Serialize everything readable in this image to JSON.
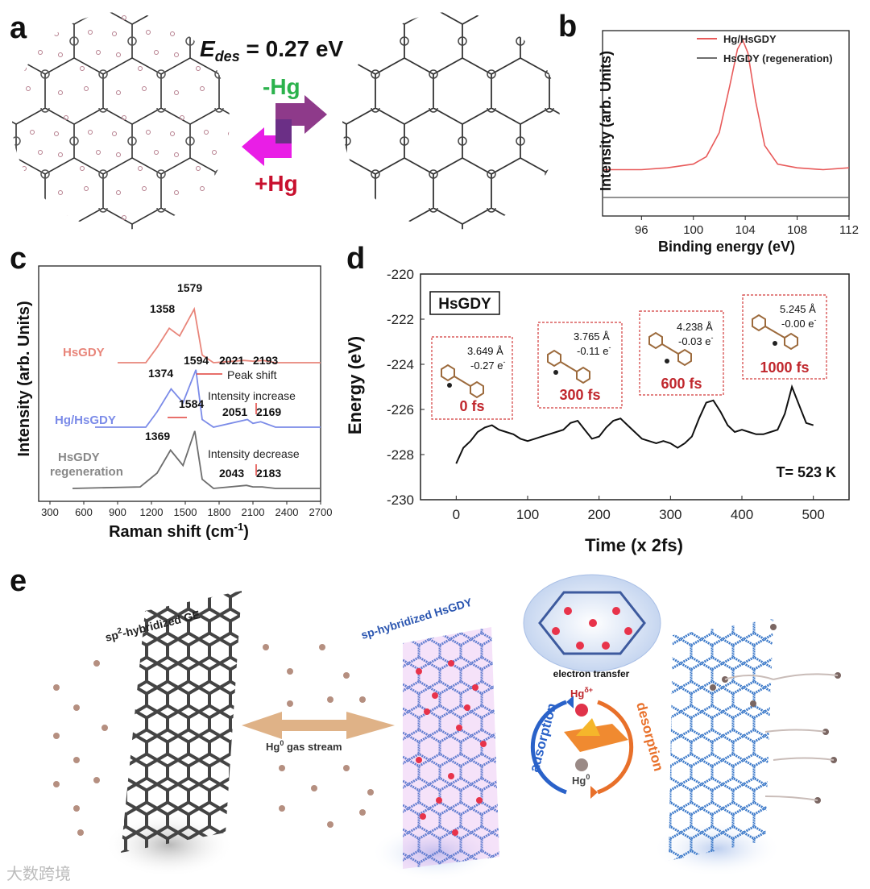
{
  "panels": {
    "a": "a",
    "b": "b",
    "c": "c",
    "d": "d",
    "e": "e"
  },
  "panel_a": {
    "energy_label": "E",
    "energy_subscript": "des",
    "energy_value": " = 0.27 eV",
    "minus_hg": "-Hg",
    "plus_hg": "+Hg",
    "colors": {
      "minus": "#2bb24c",
      "plus": "#c8102e",
      "arrow_top": "#8e3a8a",
      "arrow_bottom": "#e91ee6"
    }
  },
  "panel_e": {
    "ge_label": "sp",
    "ge_sup": "2",
    "ge_label_rest": "-hybridized GE",
    "hsgdy_label": "sp-hybridized HsGDY",
    "gas_stream": "Hg",
    "gas_sup": "0",
    "gas_rest": " gas stream",
    "electron_transfer": "electron transfer",
    "hg_plus": "Hg",
    "hg_plus_sup": "δ+",
    "hg_zero": "Hg",
    "hg_zero_sup": "0",
    "adsorption": "adsorption",
    "desorption": "desorption",
    "colors": {
      "adsorption": "#2a62c9",
      "desorption": "#e8702a",
      "graphene": "#444444",
      "gdy": "#3d7ac9"
    }
  },
  "watermark": "大数跨境",
  "chart_data": [
    {
      "id": "b",
      "type": "line",
      "title": "",
      "xlabel": "Binding energy (eV)",
      "ylabel": "Intensity (arb. Units)",
      "xlim": [
        93,
        112
      ],
      "xticks": [
        96,
        100,
        104,
        108,
        112
      ],
      "legend_position": "top-right",
      "series": [
        {
          "name": "Hg/HsGDY",
          "color": "#e85a5a",
          "x": [
            93,
            96,
            98,
            100,
            101,
            102,
            102.8,
            103.4,
            103.8,
            104.2,
            104.8,
            105.5,
            106.5,
            108,
            110,
            112
          ],
          "y": [
            0.25,
            0.25,
            0.26,
            0.28,
            0.32,
            0.45,
            0.7,
            0.9,
            0.95,
            0.88,
            0.62,
            0.38,
            0.28,
            0.26,
            0.25,
            0.26
          ]
        },
        {
          "name": "HsGDY (regeneration)",
          "color": "#6e6e6e",
          "x": [
            93,
            96,
            100,
            104,
            108,
            112
          ],
          "y": [
            0.1,
            0.1,
            0.1,
            0.1,
            0.1,
            0.1
          ]
        }
      ]
    },
    {
      "id": "c",
      "type": "line",
      "xlabel": "Raman shift (cm",
      "xlabel_sup": "-1",
      "xlabel_end": ")",
      "ylabel": "Intensity (arb. Units)",
      "xlim": [
        200,
        2700
      ],
      "xticks": [
        300,
        600,
        900,
        1200,
        1500,
        1800,
        2100,
        2400,
        2700
      ],
      "series": [
        {
          "name": "HsGDY",
          "color": "#e8857a",
          "x": [
            900,
            1150,
            1250,
            1358,
            1450,
            1579,
            1650,
            1750,
            2021,
            2100,
            2193,
            2300,
            2700
          ],
          "y": [
            0.1,
            0.1,
            0.3,
            0.55,
            0.45,
            0.8,
            0.2,
            0.1,
            0.13,
            0.12,
            0.13,
            0.1,
            0.1
          ]
        },
        {
          "name": "Hg/HsGDY",
          "color": "#7b8be8",
          "x": [
            700,
            1150,
            1250,
            1374,
            1480,
            1594,
            1650,
            1750,
            2051,
            2100,
            2169,
            2300,
            2700
          ],
          "y": [
            0.1,
            0.1,
            0.3,
            0.6,
            0.42,
            0.85,
            0.2,
            0.1,
            0.2,
            0.15,
            0.17,
            0.1,
            0.1
          ]
        },
        {
          "name": "HsGDY regeneration",
          "color": "#6e6e6e",
          "x": [
            500,
            1100,
            1250,
            1369,
            1480,
            1584,
            1650,
            1750,
            2043,
            2100,
            2183,
            2300,
            2700
          ],
          "y": [
            0.1,
            0.12,
            0.3,
            0.6,
            0.4,
            0.85,
            0.22,
            0.1,
            0.14,
            0.12,
            0.12,
            0.1,
            0.1
          ]
        }
      ],
      "peak_labels": [
        "1358",
        "1579",
        "2021",
        "2193",
        "1374",
        "1594",
        "2051",
        "2169",
        "1369",
        "1584",
        "2043",
        "2183"
      ],
      "annotations": [
        "Peak shift",
        "Intensity increase",
        "Intensity decrease"
      ]
    },
    {
      "id": "d",
      "type": "line",
      "xlabel": "Time (x 2fs)",
      "ylabel": "Energy (eV)",
      "xlim": [
        -50,
        550
      ],
      "ylim": [
        -230,
        -220
      ],
      "xticks": [
        0,
        100,
        200,
        300,
        400,
        500
      ],
      "yticks": [
        -220,
        -222,
        -224,
        -226,
        -228,
        -230
      ],
      "system_label": "HsGDY",
      "temperature": "T= 523 K",
      "series": [
        {
          "name": "Energy",
          "color": "#111111",
          "x": [
            0,
            10,
            20,
            30,
            40,
            50,
            60,
            70,
            80,
            90,
            100,
            110,
            120,
            130,
            140,
            150,
            160,
            170,
            180,
            190,
            200,
            210,
            220,
            230,
            240,
            250,
            260,
            270,
            280,
            290,
            300,
            310,
            320,
            330,
            340,
            350,
            360,
            370,
            380,
            390,
            400,
            410,
            420,
            430,
            440,
            450,
            460,
            470,
            480,
            490,
            500
          ],
          "y": [
            -228.4,
            -227.7,
            -227.4,
            -227.0,
            -226.8,
            -226.7,
            -226.9,
            -227.0,
            -227.1,
            -227.3,
            -227.4,
            -227.3,
            -227.2,
            -227.1,
            -227.0,
            -226.9,
            -226.6,
            -226.5,
            -226.9,
            -227.3,
            -227.2,
            -226.8,
            -226.5,
            -226.4,
            -226.7,
            -227.0,
            -227.3,
            -227.4,
            -227.5,
            -227.4,
            -227.5,
            -227.7,
            -227.5,
            -227.2,
            -226.4,
            -225.7,
            -225.6,
            -226.1,
            -226.7,
            -227.0,
            -226.9,
            -227.0,
            -227.1,
            -227.1,
            -227.0,
            -226.9,
            -226.2,
            -225.0,
            -225.8,
            -226.6,
            -226.7
          ]
        }
      ],
      "snapshots": [
        {
          "time": "0 fs",
          "distance": "3.649 Å",
          "charge": "-0.27 e",
          "sup": "-"
        },
        {
          "time": "300 fs",
          "distance": "3.765 Å",
          "charge": "-0.11 e",
          "sup": "-"
        },
        {
          "time": "600 fs",
          "distance": "4.238 Å",
          "charge": "-0.03 e",
          "sup": "-"
        },
        {
          "time": "1000 fs",
          "distance": "5.245 Å",
          "charge": "-0.00 e",
          "sup": "-"
        }
      ]
    }
  ]
}
